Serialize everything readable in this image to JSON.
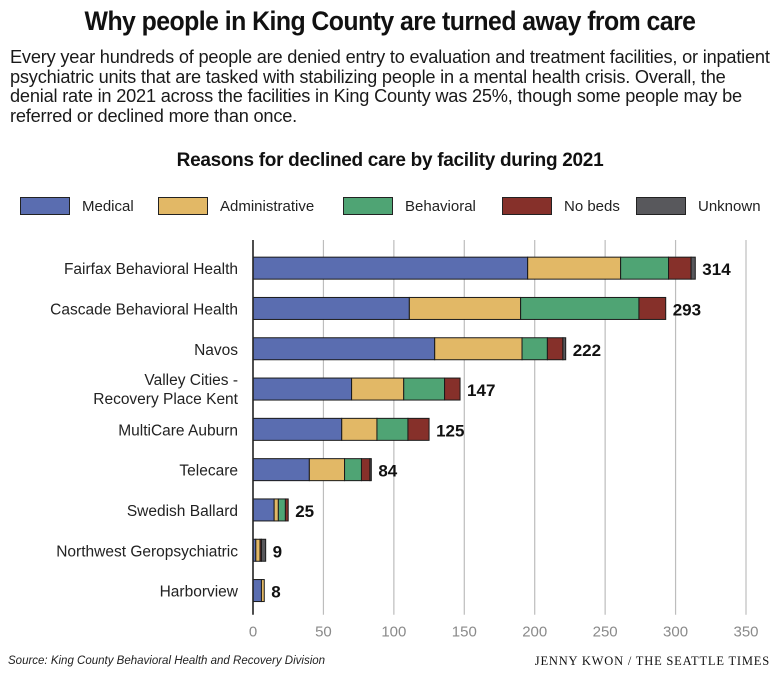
{
  "header": {
    "title": "Why people in King County are turned away from care",
    "subtitle": "Every year hundreds of people are denied entry to evaluation and treatment facilities, or inpatient psychiatric units that are tasked with stabilizing people in a mental health crisis. Overall, the denial rate in 2021 across the facilities in King County was 25%, though some people may be referred or declined more than once."
  },
  "footer": {
    "source": "Source: King County Behavioral Health and Recovery Division",
    "credit": "JENNY KWON / THE SEATTLE TIMES"
  },
  "chart_data": {
    "type": "bar",
    "orientation": "horizontal",
    "stacked": true,
    "title": "Reasons for declined care by facility during 2021",
    "xlabel": "",
    "ylabel": "",
    "xlim": [
      0,
      350
    ],
    "xticks": [
      0,
      50,
      100,
      150,
      200,
      250,
      300,
      350
    ],
    "grid": true,
    "legend_position": "top",
    "categories": [
      "Fairfax Behavioral Health",
      "Cascade Behavioral Health",
      "Navos",
      "Valley Cities - Recovery Place Kent",
      "MultiCare Auburn",
      "Telecare",
      "Swedish Ballard",
      "Northwest Geropsychiatric",
      "Harborview"
    ],
    "category_lines": [
      [
        "Fairfax Behavioral Health"
      ],
      [
        "Cascade Behavioral Health"
      ],
      [
        "Navos"
      ],
      [
        "Valley Cities -",
        "Recovery Place Kent"
      ],
      [
        "MultiCare Auburn"
      ],
      [
        "Telecare"
      ],
      [
        "Swedish Ballard"
      ],
      [
        "Northwest Geropsychiatric"
      ],
      [
        "Harborview"
      ]
    ],
    "totals": [
      314,
      293,
      222,
      147,
      125,
      84,
      25,
      9,
      8
    ],
    "series": [
      {
        "name": "Medical",
        "color": "#5a6db0",
        "values": [
          195,
          111,
          129,
          70,
          63,
          40,
          15,
          2,
          6
        ]
      },
      {
        "name": "Administrative",
        "color": "#e2b866",
        "values": [
          66,
          79,
          62,
          37,
          25,
          25,
          3,
          3,
          2
        ]
      },
      {
        "name": "Behavioral",
        "color": "#4fa474",
        "values": [
          34,
          84,
          18,
          29,
          22,
          12,
          5,
          0,
          0
        ]
      },
      {
        "name": "No beds",
        "color": "#86302a",
        "values": [
          16,
          19,
          11,
          11,
          15,
          6,
          2,
          1,
          0
        ]
      },
      {
        "name": "Unknown",
        "color": "#58585c",
        "values": [
          3,
          0,
          2,
          0,
          0,
          1,
          0,
          3,
          0
        ]
      }
    ]
  }
}
